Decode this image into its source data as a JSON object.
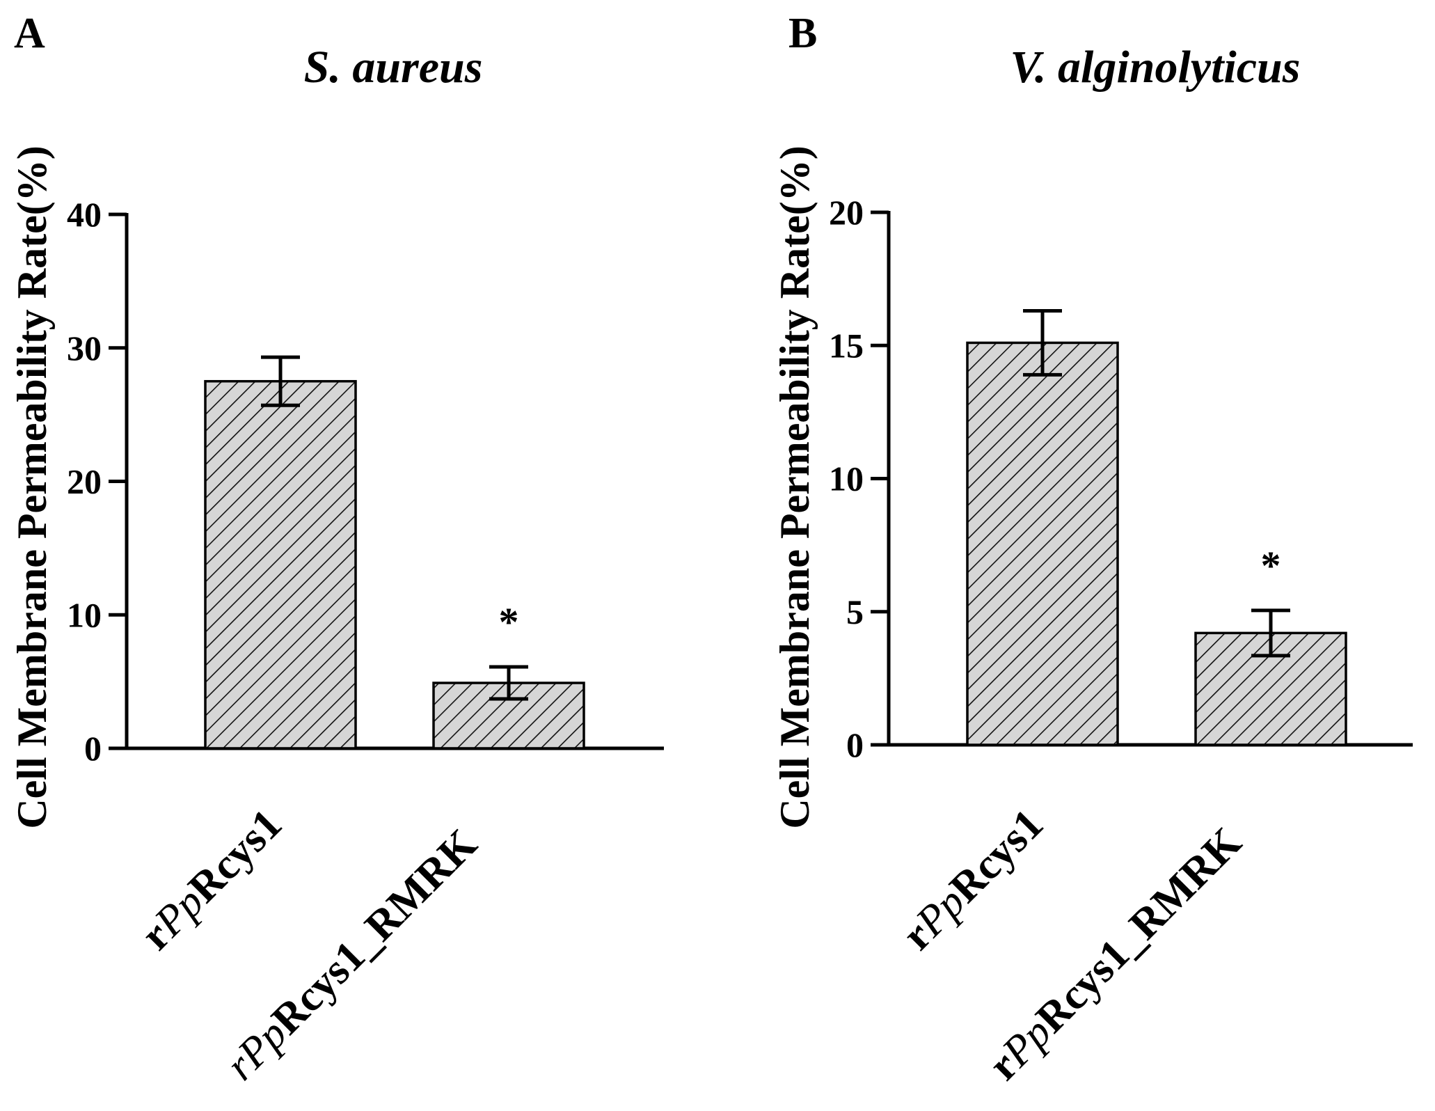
{
  "chart_data": [
    {
      "type": "bar",
      "panel_label": "A",
      "title": "S. aureus",
      "ylabel": "Cell Membrane Permeability Rate(%)",
      "xlabel": "",
      "ylim": [
        0,
        40
      ],
      "yticks": [
        0,
        10,
        20,
        30,
        40
      ],
      "categories": [
        {
          "prefix": "r",
          "italic": "Pp",
          "suffix": "Rcys1",
          "italic_prefix": false
        },
        {
          "prefix": "r",
          "italic": "Pp",
          "suffix": "Rcys1_RMRK",
          "italic_prefix": true
        }
      ],
      "values": [
        27.5,
        4.9
      ],
      "errors": [
        1.8,
        1.2
      ],
      "significance": [
        "",
        "*"
      ],
      "bar_pattern": "diagonal-hatch",
      "bar_fill": "#d6d6d6",
      "grid": false
    },
    {
      "type": "bar",
      "panel_label": "B",
      "title": "V. alginolyticus",
      "ylabel": "Cell Membrane Permeability Rate(%)",
      "xlabel": "",
      "ylim": [
        0,
        20
      ],
      "yticks": [
        0,
        5,
        10,
        15,
        20
      ],
      "categories": [
        {
          "prefix": "r",
          "italic": "Pp",
          "suffix": "Rcys1",
          "italic_prefix": false
        },
        {
          "prefix": "r",
          "italic": "Pp",
          "suffix": "Rcys1_RMRK",
          "italic_prefix": false
        }
      ],
      "values": [
        15.1,
        4.2
      ],
      "errors": [
        1.2,
        0.85
      ],
      "significance": [
        "",
        "*"
      ],
      "bar_pattern": "diagonal-hatch",
      "bar_fill": "#d6d6d6",
      "grid": false
    }
  ]
}
